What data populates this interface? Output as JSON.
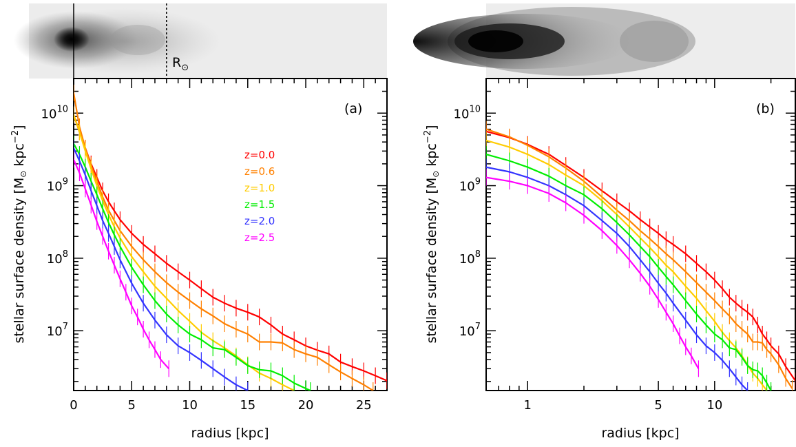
{
  "chart_data": [
    {
      "type": "line",
      "panel_label": "(a)",
      "xlabel": "radius [kpc]",
      "ylabel": "stellar surface density [M",
      "ylabel_sun": "⊙",
      "ylabel_units": " kpc",
      "ylabel_exp": "−2",
      "ylabel_close": "]",
      "xscale": "linear",
      "yscale": "log",
      "xlim": [
        0,
        27
      ],
      "ylim": [
        1500000.0,
        30000000000.0
      ],
      "xticks": [
        0,
        5,
        10,
        15,
        20,
        25
      ],
      "xtick_labels": [
        "0",
        "5",
        "10",
        "15",
        "20",
        "25"
      ],
      "yticks": [
        10000000.0,
        100000000.0,
        1000000000.0,
        10000000000.0
      ],
      "ytick_base": "10",
      "ytick_exps": [
        "7",
        "8",
        "9",
        "10"
      ],
      "legend_position": "upper-center",
      "image_annotation": "R",
      "image_annotation_sub": "⊙",
      "image_annotation_x": 8,
      "series": [
        {
          "name": "z=0.0",
          "color": "#ff0000",
          "x": [
            0,
            0.5,
            1,
            1.5,
            2,
            2.5,
            3,
            3.5,
            4,
            5,
            6,
            7,
            8,
            9,
            10,
            11,
            12,
            13,
            14,
            15,
            16,
            17,
            18,
            19,
            20,
            21,
            22,
            23,
            24,
            25,
            26,
            27
          ],
          "y": [
            9500000000.0,
            5500000000.0,
            3300000000.0,
            2000000000.0,
            1300000000.0,
            850000000.0,
            600000000.0,
            450000000.0,
            340000000.0,
            220000000.0,
            155000000.0,
            115000000.0,
            85000000.0,
            65000000.0,
            50000000.0,
            38000000.0,
            29000000.0,
            24000000.0,
            20500000.0,
            18000000.0,
            15500000.0,
            12000000.0,
            9000000.0,
            7500000.0,
            6200000.0,
            5400000.0,
            4800000.0,
            3700000.0,
            3200000.0,
            2800000.0,
            2400000.0,
            2050000.0
          ]
        },
        {
          "name": "z=0.6",
          "color": "#ff8000",
          "x": [
            0,
            0.5,
            1,
            1.5,
            2,
            2.5,
            3,
            3.5,
            4,
            5,
            6,
            7,
            8,
            9,
            10,
            11,
            12,
            13,
            14,
            15,
            16,
            17,
            18,
            19,
            20,
            21,
            22,
            23,
            24,
            25,
            25.8
          ],
          "y": [
            19000000000.0,
            6500000000.0,
            3300000000.0,
            1900000000.0,
            1150000000.0,
            700000000.0,
            460000000.0,
            330000000.0,
            240000000.0,
            145000000.0,
            95000000.0,
            65000000.0,
            46000000.0,
            34000000.0,
            26000000.0,
            20000000.0,
            16000000.0,
            12500000.0,
            10500000.0,
            9000000.0,
            7000000.0,
            7000000.0,
            6800000.0,
            5500000.0,
            4800000.0,
            4300000.0,
            3400000.0,
            2700000.0,
            2200000.0,
            1800000.0,
            1500000.0
          ]
        },
        {
          "name": "z=1.0",
          "color": "#ffcc00",
          "x": [
            0,
            0.5,
            1,
            1.5,
            2,
            2.5,
            3,
            3.5,
            4,
            5,
            6,
            7,
            8,
            9,
            10,
            11,
            12,
            13,
            14,
            15,
            16,
            17,
            18,
            19
          ],
          "y": [
            9500000000.0,
            5500000000.0,
            3000000000.0,
            1700000000.0,
            1000000000.0,
            620000000.0,
            400000000.0,
            270000000.0,
            190000000.0,
            105000000.0,
            65000000.0,
            41000000.0,
            28000000.0,
            19000000.0,
            13500000.0,
            9500000.0,
            7300000.0,
            5800000.0,
            4500000.0,
            3400000.0,
            2600000.0,
            2200000.0,
            1800000.0,
            1500000.0
          ]
        },
        {
          "name": "z=1.5",
          "color": "#00ee00",
          "x": [
            0,
            0.5,
            1,
            1.5,
            2,
            2.5,
            3,
            3.5,
            4,
            5,
            6,
            7,
            8,
            9,
            10,
            11,
            12,
            13,
            14,
            15,
            16,
            17,
            18,
            19,
            20,
            20.4
          ],
          "y": [
            3800000000.0,
            2700000000.0,
            1800000000.0,
            1150000000.0,
            750000000.0,
            480000000.0,
            310000000.0,
            210000000.0,
            145000000.0,
            75000000.0,
            43000000.0,
            26000000.0,
            17000000.0,
            12000000.0,
            9000000.0,
            7500000.0,
            5800000.0,
            5500000.0,
            4300000.0,
            3300000.0,
            2900000.0,
            2800000.0,
            2400000.0,
            1900000.0,
            1600000.0,
            1500000.0
          ]
        },
        {
          "name": "z=2.0",
          "color": "#3333ff",
          "x": [
            0,
            0.5,
            1,
            1.5,
            2,
            2.5,
            3,
            3.5,
            4,
            5,
            6,
            7,
            8,
            9,
            10,
            11,
            12,
            13,
            14,
            15
          ],
          "y": [
            3300000000.0,
            2200000000.0,
            1400000000.0,
            850000000.0,
            530000000.0,
            330000000.0,
            220000000.0,
            145000000.0,
            95000000.0,
            45000000.0,
            24000000.0,
            14000000.0,
            8800000.0,
            6200000.0,
            5000000.0,
            3900000.0,
            3000000.0,
            2300000.0,
            1800000.0,
            1500000.0
          ]
        },
        {
          "name": "z=2.5",
          "color": "#ff00ff",
          "x": [
            0,
            0.5,
            1,
            1.5,
            2,
            2.5,
            3,
            3.5,
            4,
            4.5,
            5,
            5.5,
            6,
            6.5,
            7,
            7.5,
            8.2
          ],
          "y": [
            2300000000.0,
            1500000000.0,
            900000000.0,
            540000000.0,
            320000000.0,
            200000000.0,
            125000000.0,
            80000000.0,
            52000000.0,
            34000000.0,
            22000000.0,
            15500000.0,
            10500000.0,
            7500000.0,
            5500000.0,
            4000000.0,
            3000000.0
          ]
        }
      ]
    },
    {
      "type": "line",
      "panel_label": "(b)",
      "xlabel": "radius [kpc]",
      "ylabel": "stellar surface density [M",
      "ylabel_sun": "⊙",
      "ylabel_units": " kpc",
      "ylabel_exp": "−2",
      "ylabel_close": "]",
      "xscale": "log",
      "yscale": "log",
      "xlim": [
        0.6,
        27
      ],
      "ylim": [
        1500000.0,
        30000000000.0
      ],
      "xticks": [
        1,
        5,
        10
      ],
      "xtick_labels": [
        "1",
        "5",
        "10"
      ],
      "yticks": [
        10000000.0,
        100000000.0,
        1000000000.0,
        10000000000.0
      ],
      "ytick_base": "10",
      "ytick_exps": [
        "7",
        "8",
        "9",
        "10"
      ],
      "series": [
        {
          "name": "z=0.0",
          "color": "#ff0000",
          "x": [
            0.6,
            0.8,
            1,
            1.3,
            1.6,
            2,
            2.5,
            3,
            3.5,
            4,
            4.5,
            5,
            5.5,
            6,
            7,
            8,
            9,
            10,
            11,
            12,
            13,
            14,
            15,
            16,
            17,
            18,
            19,
            20,
            22,
            24,
            27
          ],
          "y": [
            5600000000.0,
            4600000000.0,
            3700000000.0,
            2700000000.0,
            1900000000.0,
            1300000000.0,
            850000000.0,
            600000000.0,
            450000000.0,
            340000000.0,
            270000000.0,
            220000000.0,
            180000000.0,
            155000000.0,
            115000000.0,
            85000000.0,
            65000000.0,
            50000000.0,
            38000000.0,
            29000000.0,
            24000000.0,
            20500000.0,
            18000000.0,
            15500000.0,
            12000000.0,
            9000000.0,
            7500000.0,
            6200000.0,
            4800000.0,
            3200000.0,
            2050000.0
          ]
        },
        {
          "name": "z=0.6",
          "color": "#ff8000",
          "x": [
            0.6,
            0.8,
            1,
            1.3,
            1.6,
            2,
            2.5,
            3,
            3.5,
            4,
            4.5,
            5,
            5.5,
            6,
            7,
            8,
            9,
            10,
            11,
            12,
            13,
            14,
            15,
            16,
            17,
            18,
            19,
            20,
            22,
            24,
            26
          ],
          "y": [
            6000000000.0,
            4700000000.0,
            3600000000.0,
            2500000000.0,
            1750000000.0,
            1150000000.0,
            700000000.0,
            460000000.0,
            330000000.0,
            240000000.0,
            185000000.0,
            145000000.0,
            115000000.0,
            95000000.0,
            65000000.0,
            46000000.0,
            34000000.0,
            26000000.0,
            20000000.0,
            16000000.0,
            12500000.0,
            10500000.0,
            9000000.0,
            7000000.0,
            7000000.0,
            6800000.0,
            5500000.0,
            4800000.0,
            3400000.0,
            2200000.0,
            1600000.0
          ]
        },
        {
          "name": "z=1.0",
          "color": "#ffcc00",
          "x": [
            0.6,
            0.8,
            1,
            1.3,
            1.6,
            2,
            2.5,
            3,
            3.5,
            4,
            4.5,
            5,
            5.5,
            6,
            7,
            8,
            9,
            10,
            11,
            12,
            13,
            14,
            15,
            16,
            17,
            18,
            19
          ],
          "y": [
            4200000000.0,
            3400000000.0,
            2700000000.0,
            1950000000.0,
            1400000000.0,
            1000000000.0,
            620000000.0,
            400000000.0,
            270000000.0,
            190000000.0,
            140000000.0,
            105000000.0,
            80000000.0,
            65000000.0,
            41000000.0,
            28000000.0,
            19000000.0,
            13500000.0,
            9500000.0,
            7300000.0,
            5800000.0,
            4500000.0,
            3400000.0,
            2600000.0,
            2200000.0,
            1800000.0,
            1500000.0
          ]
        },
        {
          "name": "z=1.5",
          "color": "#00ee00",
          "x": [
            0.6,
            0.8,
            1,
            1.3,
            1.6,
            2,
            2.5,
            3,
            3.5,
            4,
            4.5,
            5,
            5.5,
            6,
            7,
            8,
            9,
            10,
            11,
            12,
            13,
            14,
            15,
            16,
            17,
            18,
            19,
            20
          ],
          "y": [
            2700000000.0,
            2200000000.0,
            1800000000.0,
            1350000000.0,
            1000000000.0,
            750000000.0,
            480000000.0,
            310000000.0,
            210000000.0,
            145000000.0,
            105000000.0,
            75000000.0,
            56000000.0,
            43000000.0,
            26000000.0,
            17000000.0,
            12000000.0,
            9000000.0,
            7500000.0,
            5800000.0,
            5500000.0,
            4300000.0,
            3300000.0,
            2900000.0,
            2800000.0,
            2400000.0,
            1900000.0,
            1500000.0
          ]
        },
        {
          "name": "z=2.0",
          "color": "#3333ff",
          "x": [
            0.6,
            0.8,
            1,
            1.3,
            1.6,
            2,
            2.5,
            3,
            3.5,
            4,
            4.5,
            5,
            5.5,
            6,
            7,
            8,
            9,
            10,
            11,
            12,
            13,
            14,
            15
          ],
          "y": [
            1800000000.0,
            1550000000.0,
            1300000000.0,
            1000000000.0,
            750000000.0,
            530000000.0,
            330000000.0,
            220000000.0,
            145000000.0,
            95000000.0,
            65000000.0,
            45000000.0,
            33000000.0,
            24000000.0,
            14000000.0,
            8800000.0,
            6200000.0,
            5000000.0,
            3900000.0,
            3000000.0,
            2300000.0,
            1800000.0,
            1500000.0
          ]
        },
        {
          "name": "z=2.5",
          "color": "#ff00ff",
          "x": [
            0.6,
            0.8,
            1,
            1.3,
            1.6,
            2,
            2.5,
            3,
            3.5,
            4,
            4.5,
            5,
            5.5,
            6,
            6.5,
            7,
            7.5,
            8.2
          ],
          "y": [
            1300000000.0,
            1150000000.0,
            1000000000.0,
            780000000.0,
            580000000.0,
            390000000.0,
            240000000.0,
            150000000.0,
            95000000.0,
            62000000.0,
            41000000.0,
            27000000.0,
            18000000.0,
            12500000.0,
            8500000.0,
            6000000.0,
            4500000.0,
            3000000.0
          ]
        }
      ]
    }
  ]
}
